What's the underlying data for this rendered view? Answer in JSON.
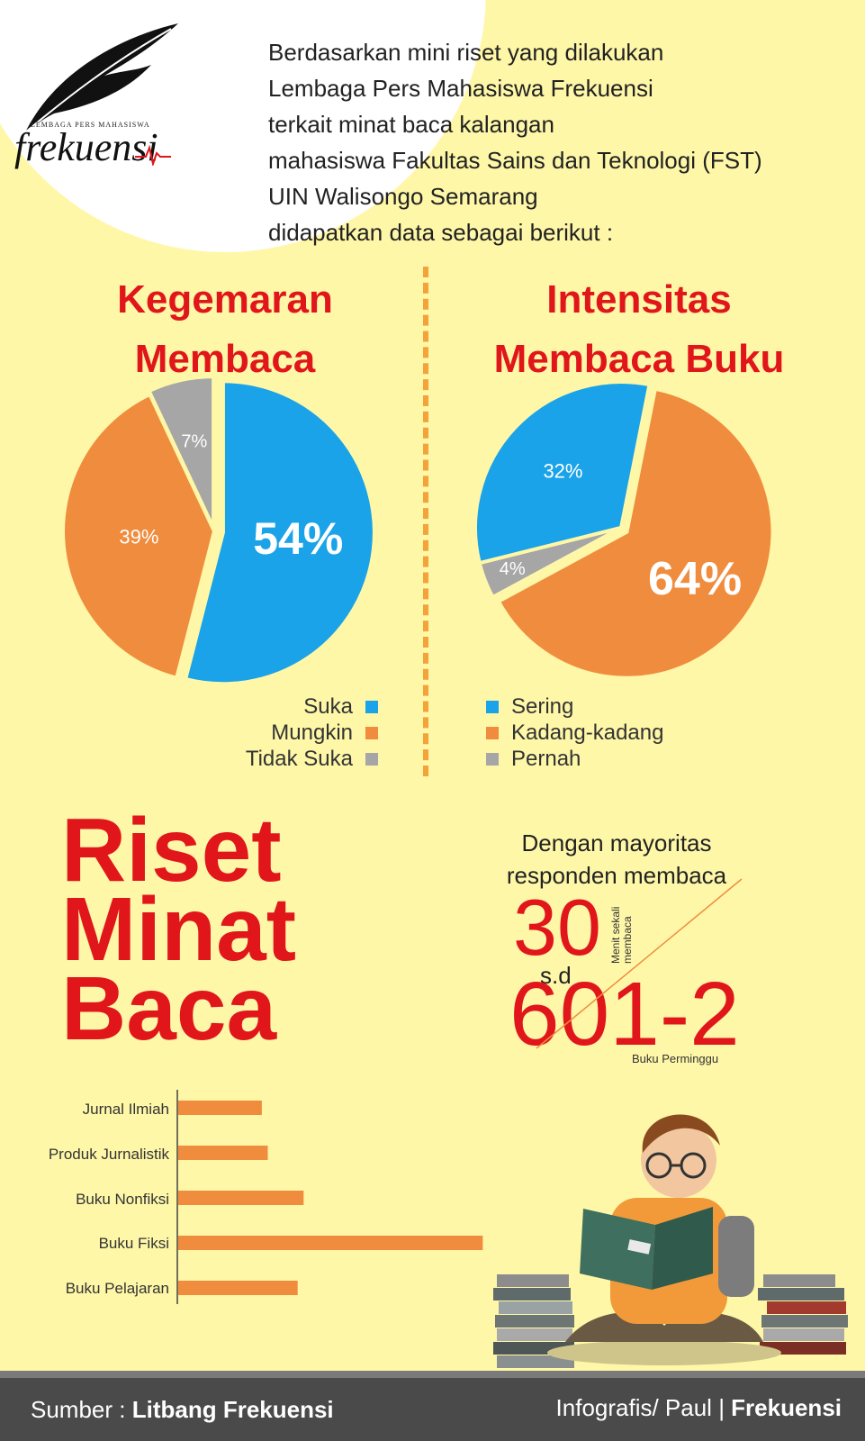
{
  "logo": {
    "subtitle": "Lembaga Pers Mahasiswa",
    "name": "frekuensi"
  },
  "intro": [
    "Berdasarkan mini riset yang dilakukan",
    "Lembaga Pers Mahasiswa Frekuensi",
    "terkait minat baca kalangan",
    "mahasiswa Fakultas Sains dan Teknologi (FST)",
    "UIN Walisongo Semarang",
    "didapatkan data sebagai berikut :"
  ],
  "colors": {
    "blue": "#1aa3e8",
    "orange": "#f08c3e",
    "gray": "#a6a6a6",
    "red": "#e0161b"
  },
  "chart_data": [
    {
      "type": "pie",
      "title": "Kegemaran Membaca",
      "title_lines": [
        "Kegemaran",
        "Membaca"
      ],
      "slices": [
        {
          "name": "Suka",
          "value": 54,
          "label": "54%",
          "color": "#1aa3e8"
        },
        {
          "name": "Mungkin",
          "value": 39,
          "label": "39%",
          "color": "#f08c3e"
        },
        {
          "name": "Tidak Suka",
          "value": 7,
          "label": "7%",
          "color": "#a6a6a6"
        }
      ],
      "legend": "bottom-right"
    },
    {
      "type": "pie",
      "title": "Intensitas Membaca Buku",
      "title_lines": [
        "Intensitas",
        "Membaca Buku"
      ],
      "slices": [
        {
          "name": "Sering",
          "value": 32,
          "label": "32%",
          "color": "#1aa3e8"
        },
        {
          "name": "Kadang-kadang",
          "value": 64,
          "label": "64%",
          "color": "#f08c3e"
        },
        {
          "name": "Pernah",
          "value": 4,
          "label": "4%",
          "color": "#a6a6a6"
        }
      ],
      "legend": "bottom-left"
    },
    {
      "type": "bar",
      "orientation": "horizontal",
      "categories": [
        "Jurnal Ilmiah",
        "Produk Jurnalistik",
        "Buku Nonfiksi",
        "Buku Fiksi",
        "Buku Pelajaran"
      ],
      "values": [
        7,
        7.5,
        10.5,
        25.5,
        10
      ],
      "xlim": [
        0,
        26
      ],
      "color": "#f08c3e",
      "grid": false
    }
  ],
  "riset": {
    "lines": [
      "Riset",
      "Minat",
      "Baca"
    ]
  },
  "stats": {
    "heading": [
      "Dengan mayoritas",
      "responden membaca"
    ],
    "minutes_low": "30",
    "sd": "s.d",
    "minutes_high": "60",
    "books": "1-2",
    "minutes_note": "Menit sekali membaca",
    "books_note": "Buku Perminggu"
  },
  "footer": {
    "source_label": "Sumber :",
    "source_name": "Litbang Frekuensi",
    "credit": "Infografis/ Paul",
    "credit_brand": "Frekuensi"
  }
}
